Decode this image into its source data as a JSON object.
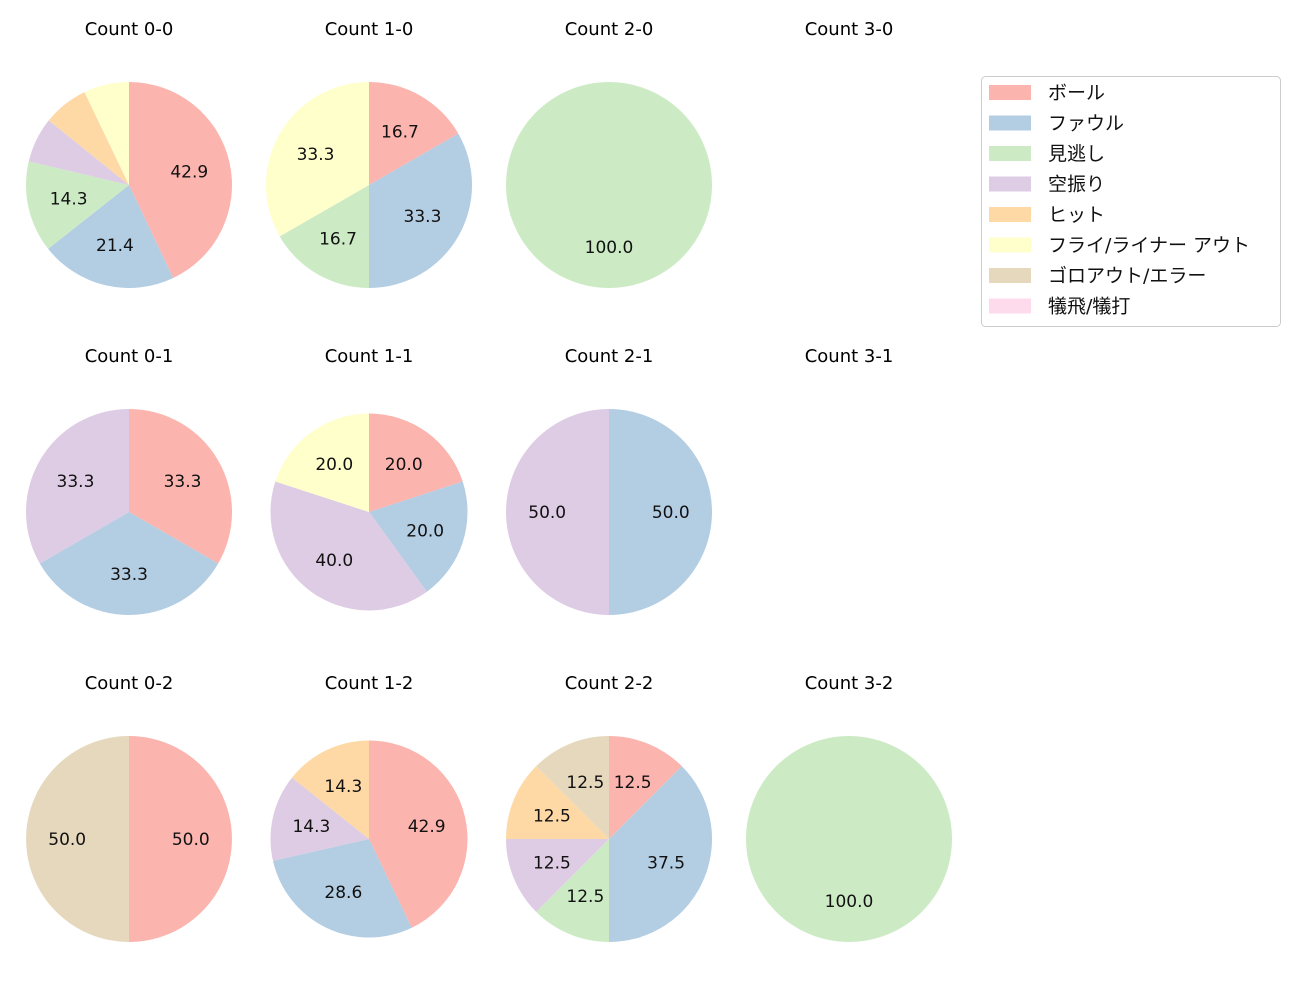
{
  "chart_data": {
    "type": "pie",
    "legend": {
      "placement": "top-right",
      "entries": [
        "ボール",
        "ファウル",
        "見逃し",
        "空振り",
        "ヒット",
        "フライ/ライナー アウト",
        "ゴロアウト/エラー",
        "犠飛/犠打"
      ]
    },
    "colors": [
      "#fbb4ae",
      "#b3cde3",
      "#ccebc5",
      "#decbe4",
      "#fed9a6",
      "#ffffcc",
      "#e5d8bd",
      "#fddaec"
    ],
    "charts": [
      {
        "title": "Count 0-0",
        "values": [
          42.9,
          21.4,
          14.3,
          7.1,
          7.1,
          7.1,
          0,
          0
        ]
      },
      {
        "title": "Count 1-0",
        "values": [
          16.7,
          33.3,
          16.7,
          0,
          0,
          33.3,
          0,
          0
        ]
      },
      {
        "title": "Count 2-0",
        "values": [
          0,
          0,
          100.0,
          0,
          0,
          0,
          0,
          0
        ]
      },
      {
        "title": "Count 3-0",
        "values": []
      },
      {
        "title": "Count 0-1",
        "values": [
          33.3,
          33.3,
          0,
          33.3,
          0,
          0,
          0,
          0
        ]
      },
      {
        "title": "Count 1-1",
        "values": [
          20.0,
          20.0,
          0,
          40.0,
          0,
          20.0,
          0,
          0
        ]
      },
      {
        "title": "Count 2-1",
        "values": [
          0,
          50.0,
          0,
          50.0,
          0,
          0,
          0,
          0
        ]
      },
      {
        "title": "Count 3-1",
        "values": []
      },
      {
        "title": "Count 0-2",
        "values": [
          50.0,
          0,
          0,
          0,
          0,
          0,
          50.0,
          0
        ]
      },
      {
        "title": "Count 1-2",
        "values": [
          42.9,
          28.6,
          0,
          14.3,
          14.3,
          0,
          0,
          0
        ]
      },
      {
        "title": "Count 2-2",
        "values": [
          12.5,
          37.5,
          12.5,
          12.5,
          12.5,
          0,
          12.5,
          0
        ]
      },
      {
        "title": "Count 3-2",
        "values": [
          0,
          0,
          100.0,
          0,
          0,
          0,
          0,
          0
        ]
      }
    ]
  }
}
